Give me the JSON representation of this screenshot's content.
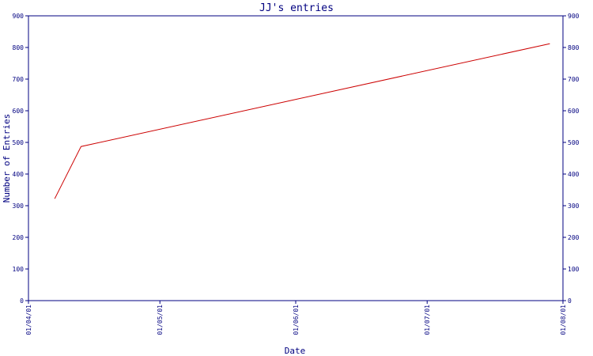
{
  "chart_data": {
    "type": "line",
    "title": "JJ's entries",
    "xlabel": "Date",
    "ylabel": "Number of Entries",
    "ylim": [
      0,
      900
    ],
    "yticks": [
      0,
      100,
      200,
      300,
      400,
      500,
      600,
      700,
      800,
      900
    ],
    "xlim": [
      "2001-04-01",
      "2001-08-01"
    ],
    "xticks": [
      {
        "date": "2001-04-01",
        "label": "01/04/01"
      },
      {
        "date": "2001-05-01",
        "label": "01/05/01"
      },
      {
        "date": "2001-06-01",
        "label": "01/06/01"
      },
      {
        "date": "2001-07-01",
        "label": "01/07/01"
      },
      {
        "date": "2001-08-01",
        "label": "01/08/01"
      }
    ],
    "series": [
      {
        "points": [
          {
            "x": "2001-04-07",
            "y": 322
          },
          {
            "x": "2001-04-13",
            "y": 487
          },
          {
            "x": "2001-07-29",
            "y": 812
          }
        ]
      }
    ],
    "grid": false,
    "right_axis_mirrors_left": true,
    "colors": {
      "axis": "#000080",
      "series": "#cc0000",
      "background": "#ffffff"
    }
  }
}
